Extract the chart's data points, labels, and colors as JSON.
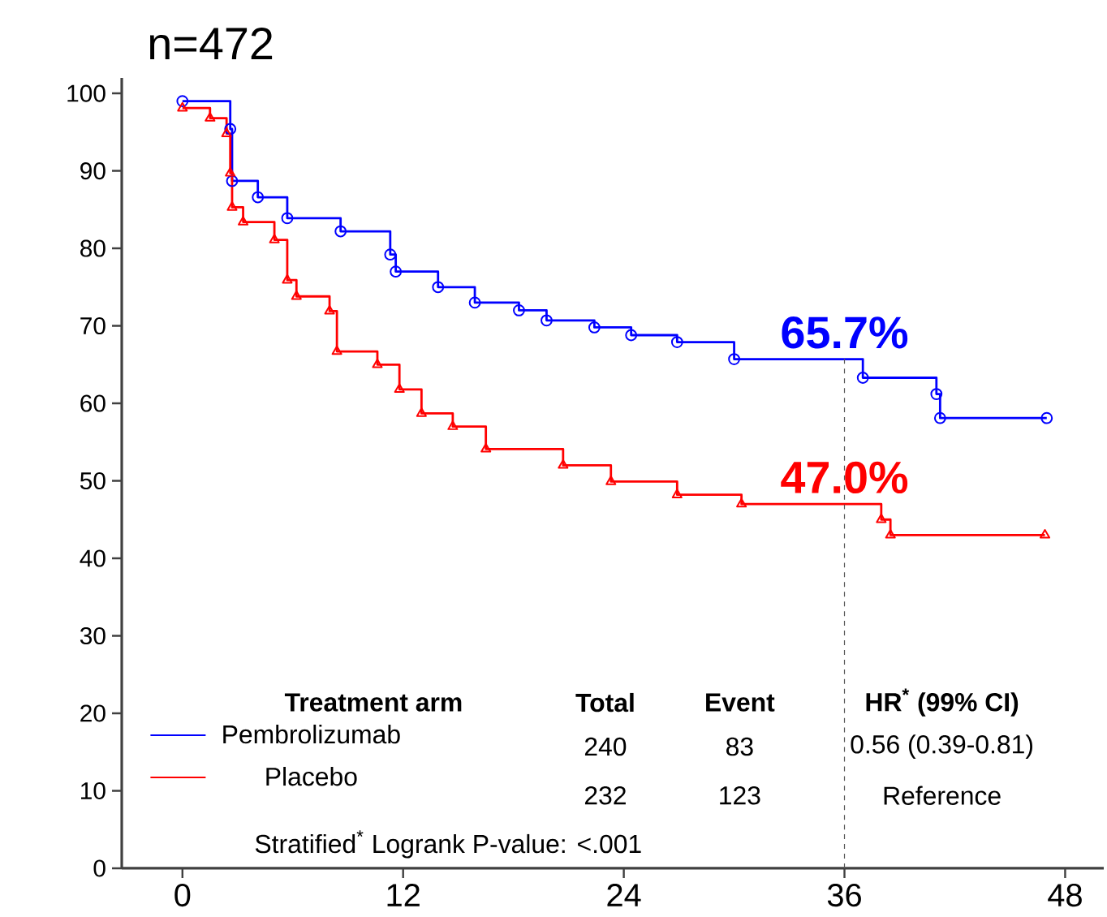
{
  "chart_data": {
    "type": "step",
    "title": "n=472",
    "series": [
      {
        "name": "Pembrolizumab",
        "color": "#0000ff",
        "marker": "circle",
        "x": [
          0,
          2.6,
          2.7,
          4.1,
          5.7,
          8.6,
          11.3,
          11.6,
          13.9,
          15.9,
          18.3,
          19.8,
          22.4,
          24.4,
          26.9,
          30,
          37,
          41,
          41.2,
          47
        ],
        "values": [
          99,
          95.4,
          88.7,
          86.6,
          83.9,
          82.2,
          79.2,
          77,
          75,
          73,
          72,
          70.7,
          69.8,
          68.8,
          67.9,
          65.7,
          63.3,
          61.2,
          58.1,
          58.1
        ]
      },
      {
        "name": "Placebo",
        "color": "#ff0000",
        "marker": "triangle",
        "x": [
          0,
          1.5,
          2.4,
          2.6,
          2.7,
          3.3,
          5,
          5.7,
          6.2,
          8,
          8.4,
          10.6,
          11.8,
          13,
          14.7,
          16.5,
          20.7,
          23.3,
          26.9,
          30.4,
          38,
          38.5,
          46.9
        ],
        "values": [
          98.1,
          96.8,
          94.8,
          89.7,
          85.3,
          83.4,
          81.1,
          75.9,
          73.8,
          71.9,
          66.7,
          65,
          61.8,
          58.7,
          57,
          54.1,
          52,
          49.9,
          48.2,
          47,
          45,
          43,
          43
        ]
      }
    ],
    "xlim": [
      -3.3,
      50.1
    ],
    "xticks": [
      0,
      12,
      24,
      36,
      48
    ],
    "ylim": [
      0,
      102
    ],
    "yticks": [
      0,
      10,
      20,
      30,
      40,
      50,
      60,
      70,
      80,
      90,
      100
    ],
    "legend": "bottom",
    "ref_lines": [
      {
        "axis": "x",
        "value": 36,
        "color": "#555555",
        "line_style": "dashed"
      }
    ],
    "annotations": [
      "Treatment arm",
      "Total",
      "Event",
      "HR$^{*}$ (99% CI)",
      "240",
      "83",
      "0.56 (0.39-0.81)",
      "232",
      "123",
      "Reference",
      "Stratified$^{*}$ Logrank P-value: <.001",
      {
        "text": "65.7%",
        "x": 36,
        "y": 65.7
      },
      {
        "text": "47.0%",
        "x": 36,
        "y": 47.0
      }
    ]
  }
}
